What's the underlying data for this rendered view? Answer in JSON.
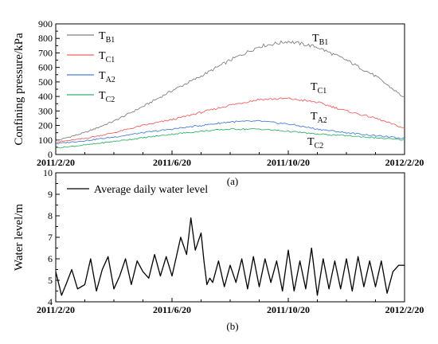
{
  "chart_data": [
    {
      "type": "line",
      "panel_label": "(a)",
      "ylabel": "Confining pressure/kPa",
      "xlabel": "",
      "ylim": [
        0,
        900
      ],
      "yticks": [
        "0",
        "100",
        "200",
        "300",
        "400",
        "500",
        "600",
        "700",
        "800",
        "900"
      ],
      "xticks": [
        "2011/2/20",
        "2011/6/20",
        "2011/10/20",
        "2012/2/20"
      ],
      "x": [
        "2011/2/20",
        "2011/3/20",
        "2011/4/20",
        "2011/5/20",
        "2011/6/20",
        "2011/7/20",
        "2011/8/20",
        "2011/9/20",
        "2011/10/20",
        "2011/11/20",
        "2011/12/20",
        "2012/1/20",
        "2012/2/20"
      ],
      "legend_position": "top-left",
      "series": [
        {
          "name": "T_B1",
          "name_main": "T",
          "name_sub": "B1",
          "color": "#808080",
          "values": [
            95,
            150,
            230,
            330,
            440,
            540,
            650,
            745,
            780,
            740,
            650,
            540,
            390
          ]
        },
        {
          "name": "T_C1",
          "name_main": "T",
          "name_sub": "C1",
          "color": "#f06262",
          "values": [
            85,
            110,
            150,
            200,
            240,
            290,
            340,
            380,
            385,
            360,
            300,
            250,
            180
          ]
        },
        {
          "name": "T_A2",
          "name_main": "T",
          "name_sub": "A2",
          "color": "#4a7fd4",
          "values": [
            75,
            95,
            120,
            150,
            175,
            200,
            225,
            230,
            210,
            175,
            150,
            130,
            110
          ]
        },
        {
          "name": "T_C2",
          "name_main": "T",
          "name_sub": "C2",
          "color": "#36b36a",
          "values": [
            45,
            65,
            90,
            115,
            140,
            160,
            175,
            175,
            160,
            140,
            130,
            115,
            100
          ]
        }
      ]
    },
    {
      "type": "line",
      "panel_label": "(b)",
      "ylabel": "Water level/m",
      "xlabel": "",
      "ylim": [
        4,
        10
      ],
      "yticks": [
        "4",
        "5",
        "6",
        "7",
        "8",
        "9",
        "10"
      ],
      "xticks": [
        "2011/2/20",
        "2011/6/20",
        "2011/10/20",
        "2012/2/20"
      ],
      "x_month_index": [
        0,
        0.2,
        0.35,
        0.55,
        0.75,
        1.0,
        1.2,
        1.4,
        1.6,
        1.8,
        2.0,
        2.2,
        2.4,
        2.6,
        2.8,
        3.0,
        3.2,
        3.4,
        3.6,
        3.8,
        4.0,
        4.3,
        4.5,
        4.65,
        4.8,
        5.0,
        5.1,
        5.2,
        5.3,
        5.4,
        5.6,
        5.8,
        6.0,
        6.2,
        6.4,
        6.6,
        6.8,
        7.0,
        7.2,
        7.4,
        7.6,
        7.8,
        8.0,
        8.2,
        8.4,
        8.6,
        8.8,
        9.0,
        9.2,
        9.4,
        9.6,
        9.8,
        10.0,
        10.2,
        10.4,
        10.6,
        10.8,
        11.0,
        11.2,
        11.4,
        11.6,
        11.8,
        12.0
      ],
      "series": [
        {
          "name": "Average daily water level",
          "color": "#000000",
          "values": [
            5.4,
            4.3,
            4.8,
            5.5,
            4.6,
            4.8,
            6.0,
            4.5,
            5.5,
            6.1,
            4.6,
            5.2,
            6.0,
            4.8,
            5.9,
            5.4,
            5.1,
            6.2,
            5.2,
            6.1,
            5.2,
            7.0,
            6.2,
            7.9,
            6.4,
            7.2,
            5.9,
            4.8,
            5.1,
            4.9,
            5.9,
            4.7,
            5.7,
            4.9,
            6.0,
            4.6,
            6.1,
            4.7,
            6.0,
            4.9,
            5.9,
            4.5,
            6.4,
            4.5,
            5.9,
            4.6,
            6.5,
            4.3,
            6.0,
            4.6,
            5.9,
            4.6,
            6.0,
            4.5,
            6.1,
            4.7,
            5.9,
            4.7,
            5.9,
            4.4,
            5.4,
            5.7,
            5.7
          ]
        }
      ]
    }
  ]
}
